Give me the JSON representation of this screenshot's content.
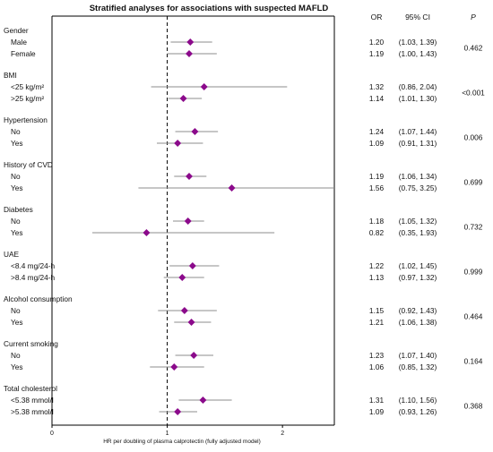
{
  "title": "Stratified analyses for associations with suspected MAFLD",
  "headers": {
    "or": "OR",
    "ci": "95% CI",
    "p": "P"
  },
  "colors": {
    "marker": "#8B0A8B",
    "ci_line": "#8c8c8c",
    "axis": "#000000",
    "ref_line": "#000000"
  },
  "chart_data": {
    "type": "forest",
    "title": "Stratified analyses for associations with suspected MAFLD",
    "xlabel": "HR per doubling of plasma calprotectin (fully adjusted model)",
    "xlim": [
      0,
      2.45
    ],
    "xticks": [
      0,
      1,
      2
    ],
    "reference_value": 1,
    "groups": [
      {
        "name": "Gender",
        "p": "0.462",
        "rows": [
          {
            "label": "Male",
            "or": 1.2,
            "lo": 1.03,
            "hi": 1.39,
            "or_text": "1.20",
            "ci_text": "(1.03, 1.39)"
          },
          {
            "label": "Female",
            "or": 1.19,
            "lo": 1.0,
            "hi": 1.43,
            "or_text": "1.19",
            "ci_text": "(1.00, 1.43)"
          }
        ]
      },
      {
        "name": "BMI",
        "p": "<0.001",
        "rows": [
          {
            "label": "<25 kg/m²",
            "or": 1.32,
            "lo": 0.86,
            "hi": 2.04,
            "or_text": "1.32",
            "ci_text": "(0.86, 2.04)"
          },
          {
            "label": ">25 kg/m²",
            "or": 1.14,
            "lo": 1.01,
            "hi": 1.3,
            "or_text": "1.14",
            "ci_text": "(1.01, 1.30)"
          }
        ]
      },
      {
        "name": "Hypertension",
        "p": "0.006",
        "rows": [
          {
            "label": "No",
            "or": 1.24,
            "lo": 1.07,
            "hi": 1.44,
            "or_text": "1.24",
            "ci_text": "(1.07, 1.44)"
          },
          {
            "label": "Yes",
            "or": 1.09,
            "lo": 0.91,
            "hi": 1.31,
            "or_text": "1.09",
            "ci_text": "(0.91, 1.31)"
          }
        ]
      },
      {
        "name": "History of CVD",
        "p": "0.699",
        "rows": [
          {
            "label": "No",
            "or": 1.19,
            "lo": 1.06,
            "hi": 1.34,
            "or_text": "1.19",
            "ci_text": "(1.06, 1.34)"
          },
          {
            "label": "Yes",
            "or": 1.56,
            "lo": 0.75,
            "hi": 3.25,
            "or_text": "1.56",
            "ci_text": "(0.75, 3.25)"
          }
        ]
      },
      {
        "name": "Diabetes",
        "p": "0.732",
        "rows": [
          {
            "label": "No",
            "or": 1.18,
            "lo": 1.05,
            "hi": 1.32,
            "or_text": "1.18",
            "ci_text": "(1.05, 1.32)"
          },
          {
            "label": "Yes",
            "or": 0.82,
            "lo": 0.35,
            "hi": 1.93,
            "or_text": "0.82",
            "ci_text": "(0.35, 1.93)"
          }
        ]
      },
      {
        "name": "UAE",
        "p": "0.999",
        "rows": [
          {
            "label": "<8.4 mg/24-h",
            "or": 1.22,
            "lo": 1.02,
            "hi": 1.45,
            "or_text": "1.22",
            "ci_text": "(1.02, 1.45)"
          },
          {
            "label": ">8.4 mg/24-h",
            "or": 1.13,
            "lo": 0.97,
            "hi": 1.32,
            "or_text": "1.13",
            "ci_text": "(0.97, 1.32)"
          }
        ]
      },
      {
        "name": "Alcohol consumption",
        "p": "0.464",
        "rows": [
          {
            "label": "No",
            "or": 1.15,
            "lo": 0.92,
            "hi": 1.43,
            "or_text": "1.15",
            "ci_text": "(0.92, 1.43)"
          },
          {
            "label": "Yes",
            "or": 1.21,
            "lo": 1.06,
            "hi": 1.38,
            "or_text": "1.21",
            "ci_text": "(1.06, 1.38)"
          }
        ]
      },
      {
        "name": "Current smoking",
        "p": "0.164",
        "rows": [
          {
            "label": "No",
            "or": 1.23,
            "lo": 1.07,
            "hi": 1.4,
            "or_text": "1.23",
            "ci_text": "(1.07, 1.40)"
          },
          {
            "label": "Yes",
            "or": 1.06,
            "lo": 0.85,
            "hi": 1.32,
            "or_text": "1.06",
            "ci_text": "(0.85, 1.32)"
          }
        ]
      },
      {
        "name": "Total cholesterol",
        "p": "0.368",
        "rows": [
          {
            "label": "<5.38 mmol/l",
            "or": 1.31,
            "lo": 1.1,
            "hi": 1.56,
            "or_text": "1.31",
            "ci_text": "(1.10, 1.56)"
          },
          {
            "label": ">5.38 mmol/l",
            "or": 1.09,
            "lo": 0.93,
            "hi": 1.26,
            "or_text": "1.09",
            "ci_text": "(0.93, 1.26)"
          }
        ]
      }
    ]
  }
}
